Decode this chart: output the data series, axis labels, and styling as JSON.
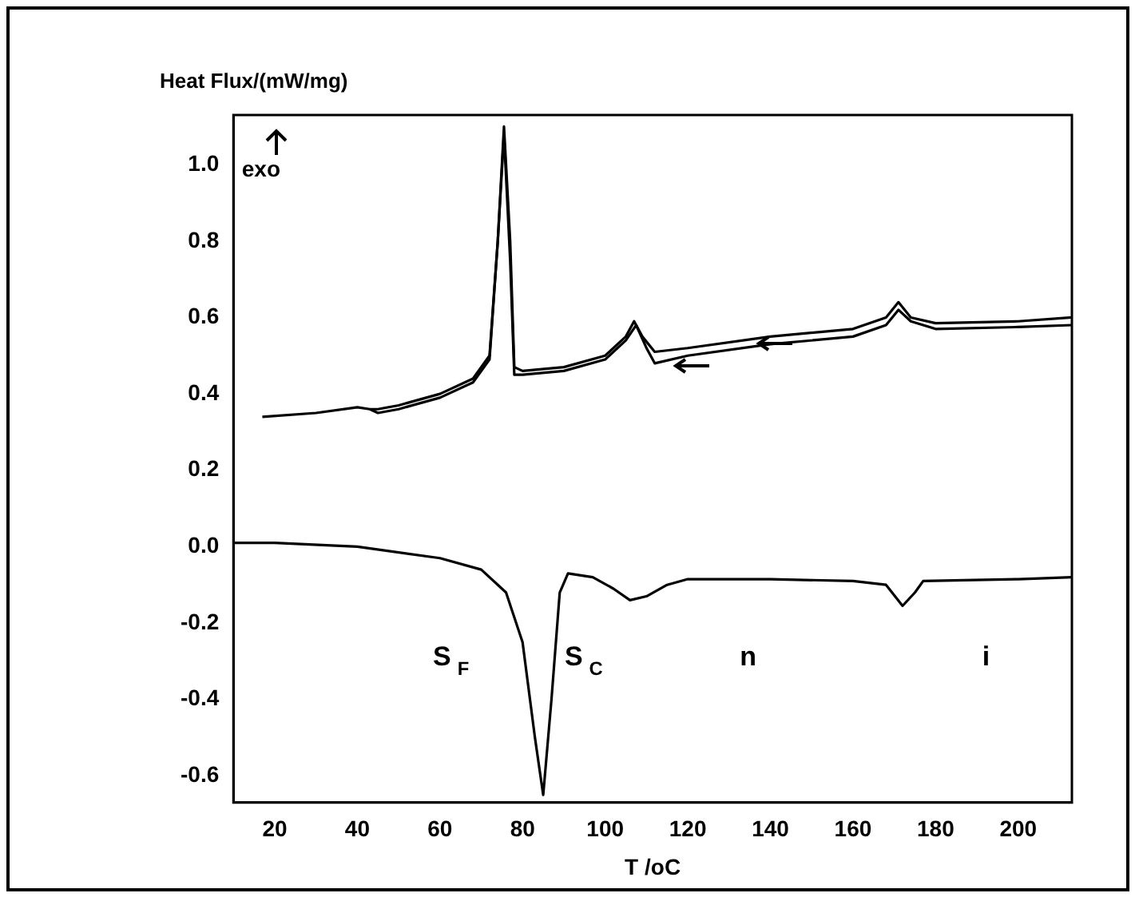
{
  "chart_data": {
    "type": "line",
    "xlabel": "T /oC",
    "ylabel": "Heat Flux/(mW/mg)",
    "xlim": [
      10,
      213
    ],
    "ylim": [
      -0.67,
      1.13
    ],
    "xticks": [
      20,
      40,
      60,
      80,
      100,
      120,
      140,
      160,
      180,
      200
    ],
    "yticks": [
      -0.6,
      -0.4,
      -0.2,
      {
        "value": 0,
        "label": "0.0"
      },
      0.2,
      0.4,
      0.6,
      0.8,
      {
        "value": 1,
        "label": "1.0"
      }
    ],
    "grid": false,
    "legend": false,
    "marker": "none",
    "line_style": "solid",
    "series": [
      {
        "color": "#000000",
        "x": [
          17,
          30,
          40,
          43,
          45,
          50,
          60,
          68,
          72,
          74,
          75.5,
          77,
          78,
          80,
          90,
          100,
          105,
          107,
          109,
          112,
          120,
          140,
          160,
          168,
          171,
          174,
          180,
          200,
          213
        ],
        "values": [
          0.34,
          0.35,
          0.365,
          0.36,
          0.36,
          0.37,
          0.4,
          0.44,
          0.5,
          0.8,
          1.1,
          0.8,
          0.47,
          0.46,
          0.47,
          0.5,
          0.55,
          0.59,
          0.55,
          0.51,
          0.52,
          0.55,
          0.57,
          0.6,
          0.64,
          0.6,
          0.585,
          0.59,
          0.6
        ]
      },
      {
        "color": "#000000",
        "x": [
          43,
          45,
          50,
          60,
          68,
          72,
          74,
          75.5,
          77,
          78,
          80,
          90,
          100,
          105,
          107.5,
          110,
          112,
          120,
          140,
          160,
          168,
          171,
          174,
          180,
          200,
          213
        ],
        "values": [
          0.36,
          0.35,
          0.36,
          0.39,
          0.43,
          0.49,
          0.8,
          1.08,
          0.75,
          0.45,
          0.45,
          0.46,
          0.49,
          0.54,
          0.58,
          0.52,
          0.48,
          0.5,
          0.53,
          0.55,
          0.58,
          0.62,
          0.59,
          0.57,
          0.575,
          0.58
        ]
      },
      {
        "color": "#000000",
        "x": [
          10,
          20,
          40,
          60,
          70,
          76,
          80,
          83,
          85,
          87,
          89,
          91,
          97,
          102,
          106,
          110,
          115,
          120,
          140,
          160,
          168,
          172,
          175,
          177,
          200,
          213
        ],
        "values": [
          0.01,
          0.01,
          0.0,
          -0.03,
          -0.06,
          -0.12,
          -0.25,
          -0.5,
          -0.65,
          -0.4,
          -0.12,
          -0.07,
          -0.08,
          -0.11,
          -0.14,
          -0.13,
          -0.1,
          -0.085,
          -0.085,
          -0.09,
          -0.1,
          -0.155,
          -0.12,
          -0.09,
          -0.085,
          -0.08
        ]
      }
    ],
    "annotations": [
      "exo",
      "S$_{F}$",
      "S$_{C}$",
      "n",
      "i"
    ]
  }
}
